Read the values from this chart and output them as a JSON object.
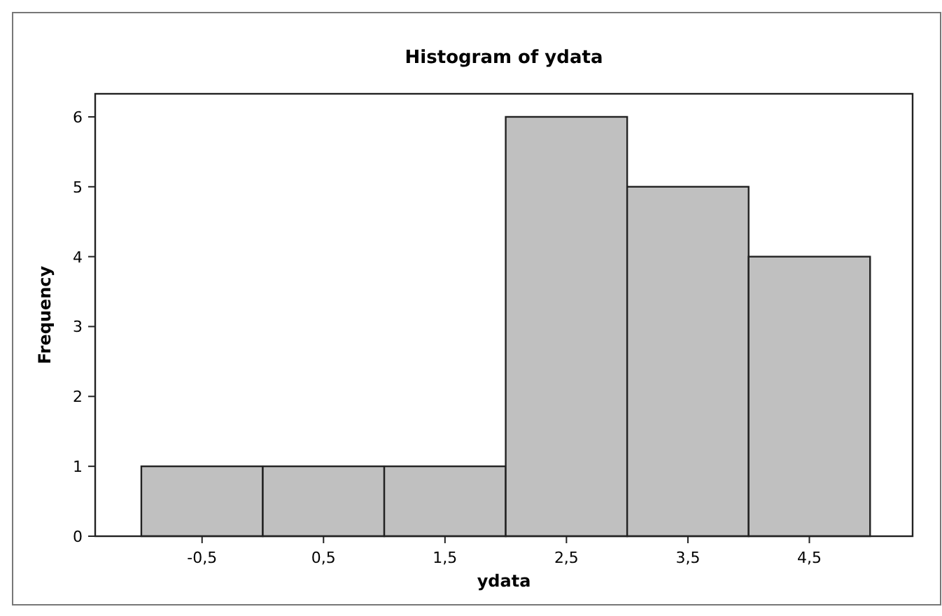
{
  "chart_data": {
    "type": "histogram",
    "title": "Histogram of ydata",
    "xlabel": "ydata",
    "ylabel": "Frequency",
    "bins": [
      -1,
      0,
      1,
      2,
      3,
      4,
      5
    ],
    "values": [
      1,
      1,
      1,
      6,
      5,
      4
    ],
    "color": "#c0c0c0",
    "xlim": [
      -1.38,
      5.35
    ],
    "ylim": [
      0,
      6.33
    ],
    "xticks": [
      {
        "value": -0.5,
        "label": "-0,5"
      },
      {
        "value": 0.5,
        "label": "0,5"
      },
      {
        "value": 1.5,
        "label": "1,5"
      },
      {
        "value": 2.5,
        "label": "2,5"
      },
      {
        "value": 3.5,
        "label": "3,5"
      },
      {
        "value": 4.5,
        "label": "4,5"
      }
    ],
    "yticks": [
      0,
      1,
      2,
      3,
      4,
      5,
      6
    ],
    "grid": false
  }
}
